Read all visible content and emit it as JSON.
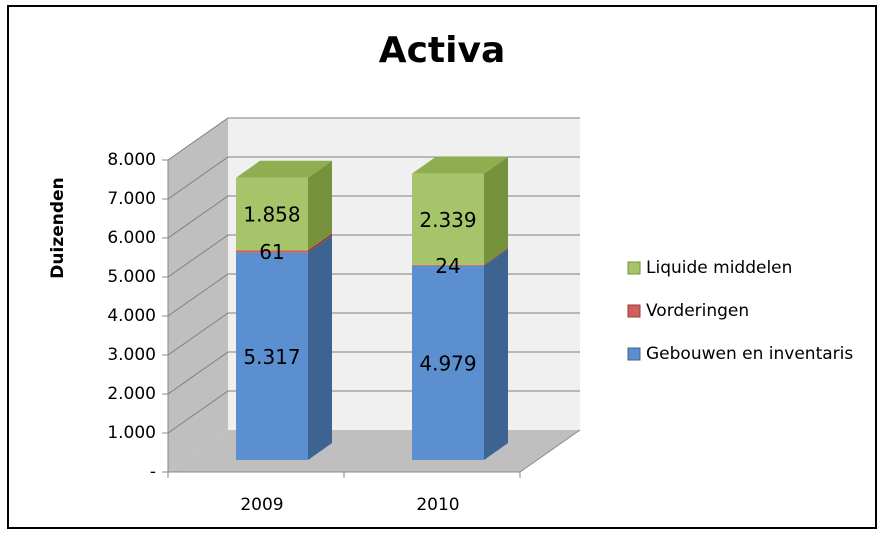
{
  "chart_data": {
    "type": "bar3d_stacked",
    "title": "Activa",
    "y_label": "Duizenden",
    "categories": [
      "2009",
      "2010"
    ],
    "series": [
      {
        "name": "Gebouwen en inventaris",
        "color": "#5b8fd0",
        "side": "#3d6491",
        "top": "#8db0df",
        "values": [
          5317,
          4979
        ],
        "value_labels": [
          "5.317",
          "4.979"
        ]
      },
      {
        "name": "Vorderingen",
        "color": "#d0605c",
        "side": "#943c39",
        "top": "#e09794",
        "values": [
          61,
          24
        ],
        "value_labels": [
          "61",
          "24"
        ]
      },
      {
        "name": "Liquide middelen",
        "color": "#a6c56a",
        "side": "#76923c",
        "top": "#8eae4f",
        "values": [
          1858,
          2339
        ],
        "value_labels": [
          "1.858",
          "2.339"
        ]
      }
    ],
    "ylim": [
      0,
      8000
    ],
    "yticks": [
      {
        "value": 0,
        "label": "-"
      },
      {
        "value": 1000,
        "label": "1.000"
      },
      {
        "value": 2000,
        "label": "2.000"
      },
      {
        "value": 3000,
        "label": "3.000"
      },
      {
        "value": 4000,
        "label": "4.000"
      },
      {
        "value": 5000,
        "label": "5.000"
      },
      {
        "value": 6000,
        "label": "6.000"
      },
      {
        "value": 7000,
        "label": "7.000"
      },
      {
        "value": 8000,
        "label": "8.000"
      }
    ],
    "grid": true,
    "legend": "right"
  }
}
